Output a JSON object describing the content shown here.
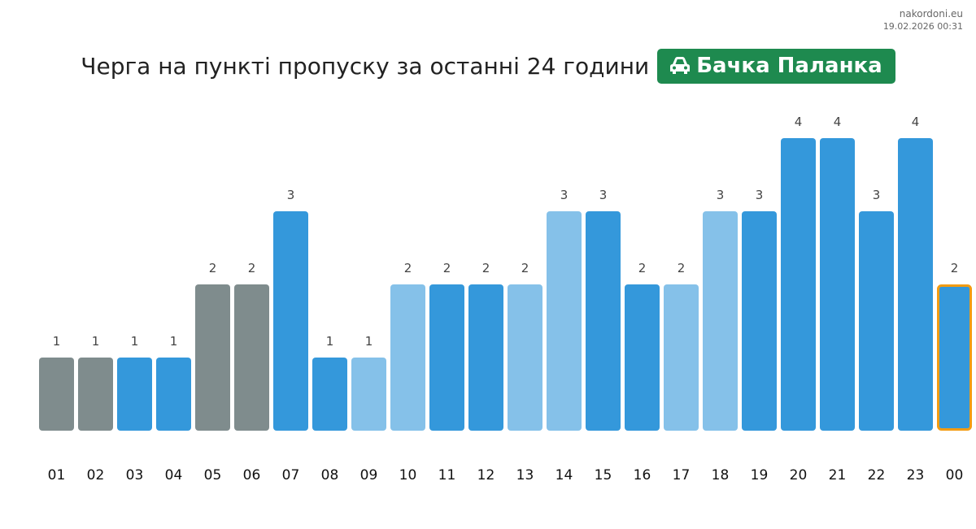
{
  "meta": {
    "site": "nakordoni.eu",
    "timestamp": "19.02.2026 00:31"
  },
  "header": {
    "title": "Черга на пункті пропуску за останні 24 години",
    "badge_label": "Бачка Паланка",
    "badge_icon": "car-icon",
    "badge_color": "#1e8a4f"
  },
  "chart_data": {
    "type": "bar",
    "categories": [
      "01",
      "02",
      "03",
      "04",
      "05",
      "06",
      "07",
      "08",
      "09",
      "10",
      "11",
      "12",
      "13",
      "14",
      "15",
      "16",
      "17",
      "18",
      "19",
      "20",
      "21",
      "22",
      "23",
      "00"
    ],
    "values": [
      1,
      1,
      1,
      1,
      2,
      2,
      3,
      1,
      1,
      2,
      2,
      2,
      2,
      3,
      3,
      2,
      2,
      3,
      3,
      4,
      4,
      3,
      4,
      2
    ],
    "bar_colors": [
      "#7f8c8d",
      "#7f8c8d",
      "#3498db",
      "#3498db",
      "#7f8c8d",
      "#7f8c8d",
      "#3498db",
      "#3498db",
      "#85c1e9",
      "#85c1e9",
      "#3498db",
      "#3498db",
      "#85c1e9",
      "#85c1e9",
      "#3498db",
      "#3498db",
      "#85c1e9",
      "#85c1e9",
      "#3498db",
      "#3498db",
      "#3498db",
      "#3498db",
      "#3498db",
      "#3498db"
    ],
    "highlight_index": 23,
    "highlight_color": "#f39c12",
    "ylim": [
      0,
      4
    ],
    "grid": false,
    "legend": "none",
    "title": "",
    "xlabel": "",
    "ylabel": ""
  }
}
